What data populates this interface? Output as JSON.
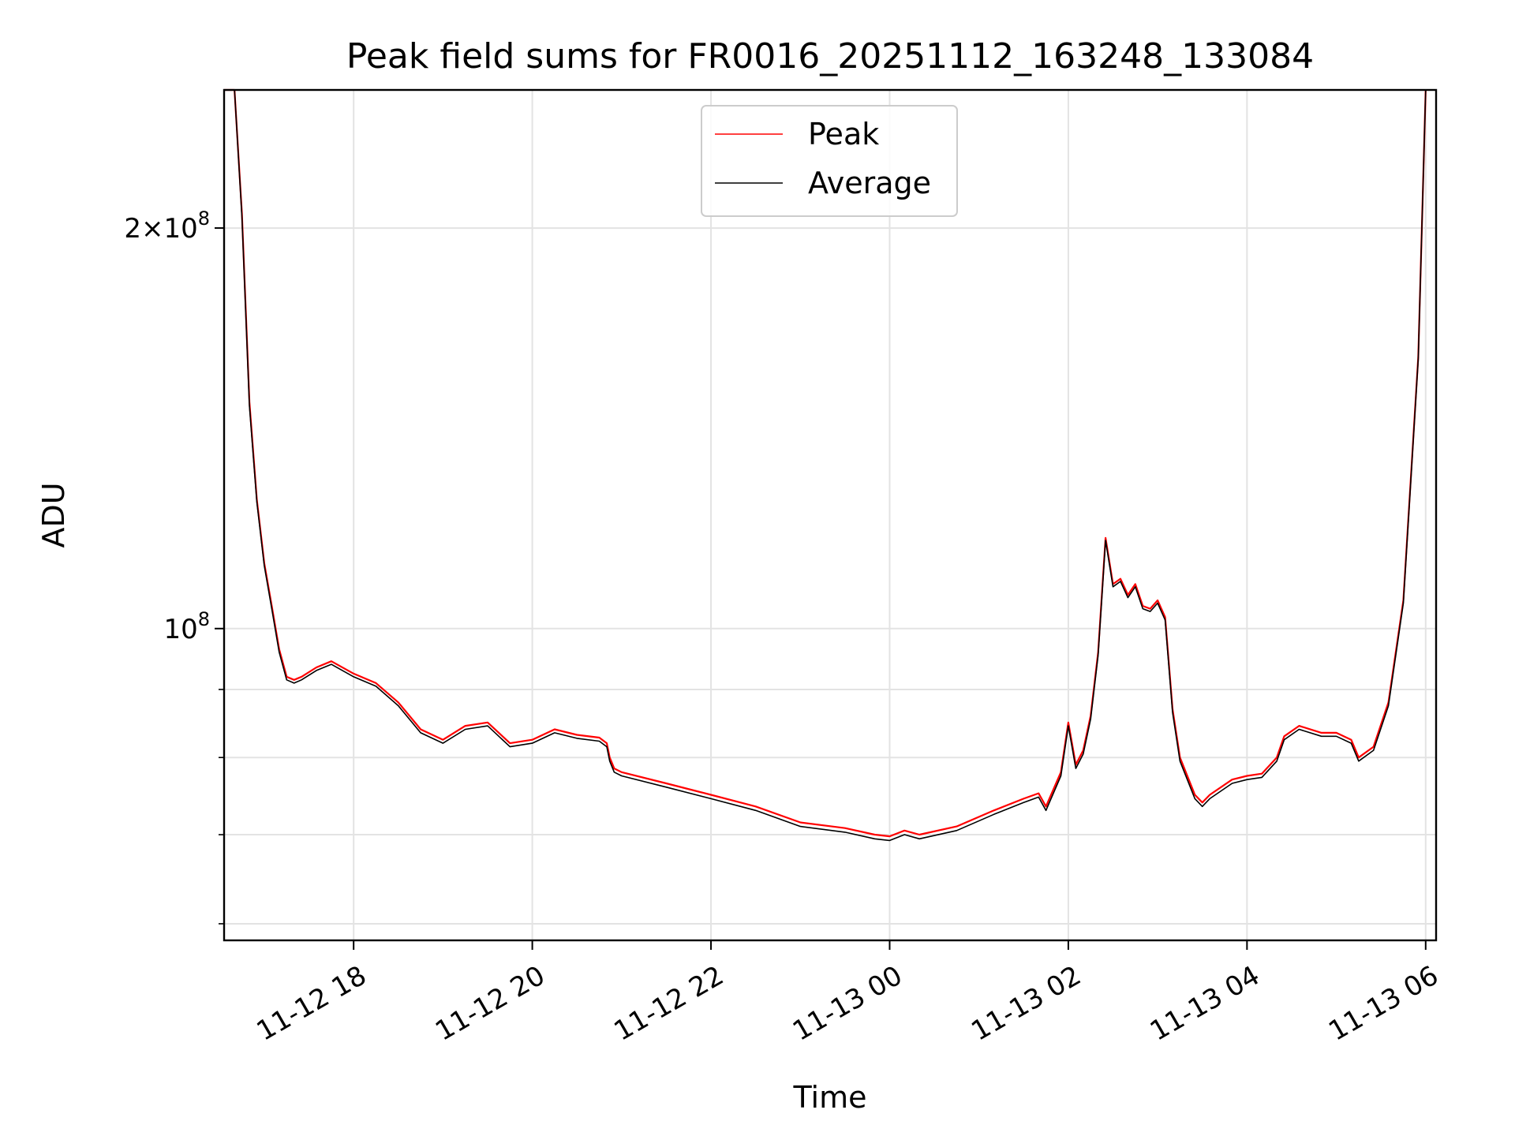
{
  "chart_data": {
    "type": "line",
    "title": "Peak field sums for FR0016_20251112_163248_133084",
    "xlabel": "Time",
    "ylabel": "ADU",
    "x_type": "datetime",
    "y_scale": "log",
    "xlim": [
      "2025-11-12T16:33",
      "2025-11-13T06:07"
    ],
    "ylim": [
      58300000,
      254000000
    ],
    "grid": true,
    "legend_position": "upper-center",
    "x_ticks": [
      {
        "value": "2025-11-12T18:00",
        "label": "11-12 18"
      },
      {
        "value": "2025-11-12T20:00",
        "label": "11-12 20"
      },
      {
        "value": "2025-11-12T22:00",
        "label": "11-12 22"
      },
      {
        "value": "2025-11-13T00:00",
        "label": "11-13 00"
      },
      {
        "value": "2025-11-13T02:00",
        "label": "11-13 02"
      },
      {
        "value": "2025-11-13T04:00",
        "label": "11-13 04"
      },
      {
        "value": "2025-11-13T06:00",
        "label": "11-13 06"
      }
    ],
    "y_major_ticks": [
      {
        "value": 100000000,
        "base": "10",
        "exp": "8",
        "coef": ""
      },
      {
        "value": 200000000,
        "base": "10",
        "exp": "8",
        "coef": "2×"
      }
    ],
    "y_minor_ticks": [
      60000000,
      70000000,
      80000000,
      90000000
    ],
    "series": [
      {
        "name": "Peak",
        "color": "#ff0000",
        "x": [
          "2025-11-12T16:33",
          "2025-11-12T16:40",
          "2025-11-12T16:45",
          "2025-11-12T16:50",
          "2025-11-12T16:55",
          "2025-11-12T17:00",
          "2025-11-12T17:05",
          "2025-11-12T17:10",
          "2025-11-12T17:15",
          "2025-11-12T17:20",
          "2025-11-12T17:25",
          "2025-11-12T17:35",
          "2025-11-12T17:45",
          "2025-11-12T18:00",
          "2025-11-12T18:15",
          "2025-11-12T18:30",
          "2025-11-12T18:45",
          "2025-11-12T19:00",
          "2025-11-12T19:15",
          "2025-11-12T19:30",
          "2025-11-12T19:45",
          "2025-11-12T20:00",
          "2025-11-12T20:15",
          "2025-11-12T20:30",
          "2025-11-12T20:45",
          "2025-11-12T20:50",
          "2025-11-12T20:52",
          "2025-11-12T20:55",
          "2025-11-12T21:00",
          "2025-11-12T21:30",
          "2025-11-12T22:00",
          "2025-11-12T22:30",
          "2025-11-12T23:00",
          "2025-11-12T23:30",
          "2025-11-12T23:50",
          "2025-11-13T00:00",
          "2025-11-13T00:10",
          "2025-11-13T00:20",
          "2025-11-13T00:45",
          "2025-11-13T01:10",
          "2025-11-13T01:30",
          "2025-11-13T01:40",
          "2025-11-13T01:45",
          "2025-11-13T01:55",
          "2025-11-13T02:00",
          "2025-11-13T02:05",
          "2025-11-13T02:10",
          "2025-11-13T02:15",
          "2025-11-13T02:20",
          "2025-11-13T02:25",
          "2025-11-13T02:30",
          "2025-11-13T02:35",
          "2025-11-13T02:40",
          "2025-11-13T02:45",
          "2025-11-13T02:50",
          "2025-11-13T02:55",
          "2025-11-13T03:00",
          "2025-11-13T03:05",
          "2025-11-13T03:10",
          "2025-11-13T03:15",
          "2025-11-13T03:25",
          "2025-11-13T03:30",
          "2025-11-13T03:35",
          "2025-11-13T03:50",
          "2025-11-13T04:00",
          "2025-11-13T04:10",
          "2025-11-13T04:20",
          "2025-11-13T04:25",
          "2025-11-13T04:35",
          "2025-11-13T04:50",
          "2025-11-13T05:00",
          "2025-11-13T05:10",
          "2025-11-13T05:15",
          "2025-11-13T05:25",
          "2025-11-13T05:35",
          "2025-11-13T05:45",
          "2025-11-13T05:55",
          "2025-11-13T06:00"
        ],
        "y": [
          254000000,
          254000000,
          205000000,
          148000000,
          125000000,
          112000000,
          104000000,
          96500000,
          92000000,
          91500000,
          92000000,
          93500000,
          94500000,
          92500000,
          91000000,
          88000000,
          84000000,
          82500000,
          84500000,
          85000000,
          82000000,
          82500000,
          84000000,
          83200000,
          82800000,
          82000000,
          80000000,
          78500000,
          78000000,
          76500000,
          75000000,
          73500000,
          71500000,
          70800000,
          70000000,
          69800000,
          70500000,
          70000000,
          71000000,
          73000000,
          74500000,
          75200000,
          73500000,
          78000000,
          85000000,
          79000000,
          81000000,
          86000000,
          96000000,
          117000000,
          108000000,
          109000000,
          106000000,
          108000000,
          104000000,
          103500000,
          105000000,
          102000000,
          87000000,
          80000000,
          75000000,
          74000000,
          75000000,
          77000000,
          77500000,
          77800000,
          80000000,
          83000000,
          84500000,
          83500000,
          83500000,
          82500000,
          80000000,
          81500000,
          88000000,
          105000000,
          160000000,
          254000000
        ]
      },
      {
        "name": "Average",
        "color": "#000000",
        "x": [
          "2025-11-12T16:33",
          "2025-11-12T16:40",
          "2025-11-12T16:45",
          "2025-11-12T16:50",
          "2025-11-12T16:55",
          "2025-11-12T17:00",
          "2025-11-12T17:05",
          "2025-11-12T17:10",
          "2025-11-12T17:15",
          "2025-11-12T17:20",
          "2025-11-12T17:25",
          "2025-11-12T17:35",
          "2025-11-12T17:45",
          "2025-11-12T18:00",
          "2025-11-12T18:15",
          "2025-11-12T18:30",
          "2025-11-12T18:45",
          "2025-11-12T19:00",
          "2025-11-12T19:15",
          "2025-11-12T19:30",
          "2025-11-12T19:45",
          "2025-11-12T20:00",
          "2025-11-12T20:15",
          "2025-11-12T20:30",
          "2025-11-12T20:45",
          "2025-11-12T20:50",
          "2025-11-12T20:52",
          "2025-11-12T20:55",
          "2025-11-12T21:00",
          "2025-11-12T21:30",
          "2025-11-12T22:00",
          "2025-11-12T22:30",
          "2025-11-12T23:00",
          "2025-11-12T23:30",
          "2025-11-12T23:50",
          "2025-11-13T00:00",
          "2025-11-13T00:10",
          "2025-11-13T00:20",
          "2025-11-13T00:45",
          "2025-11-13T01:10",
          "2025-11-13T01:30",
          "2025-11-13T01:40",
          "2025-11-13T01:45",
          "2025-11-13T01:55",
          "2025-11-13T02:00",
          "2025-11-13T02:05",
          "2025-11-13T02:10",
          "2025-11-13T02:15",
          "2025-11-13T02:20",
          "2025-11-13T02:25",
          "2025-11-13T02:30",
          "2025-11-13T02:35",
          "2025-11-13T02:40",
          "2025-11-13T02:45",
          "2025-11-13T02:50",
          "2025-11-13T02:55",
          "2025-11-13T03:00",
          "2025-11-13T03:05",
          "2025-11-13T03:10",
          "2025-11-13T03:15",
          "2025-11-13T03:25",
          "2025-11-13T03:30",
          "2025-11-13T03:35",
          "2025-11-13T03:50",
          "2025-11-13T04:00",
          "2025-11-13T04:10",
          "2025-11-13T04:20",
          "2025-11-13T04:25",
          "2025-11-13T04:35",
          "2025-11-13T04:50",
          "2025-11-13T05:00",
          "2025-11-13T05:10",
          "2025-11-13T05:15",
          "2025-11-13T05:25",
          "2025-11-13T05:35",
          "2025-11-13T05:45",
          "2025-11-13T05:55",
          "2025-11-13T06:00"
        ],
        "y": [
          254000000,
          254000000,
          204000000,
          147000000,
          124500000,
          111500000,
          103500000,
          96000000,
          91500000,
          91000000,
          91500000,
          93000000,
          94000000,
          92000000,
          90500000,
          87500000,
          83500000,
          82000000,
          84000000,
          84500000,
          81500000,
          82000000,
          83500000,
          82700000,
          82300000,
          81500000,
          79500000,
          78000000,
          77500000,
          76000000,
          74500000,
          73000000,
          71000000,
          70300000,
          69500000,
          69300000,
          70000000,
          69500000,
          70500000,
          72500000,
          74000000,
          74700000,
          73000000,
          77500000,
          84500000,
          78500000,
          80500000,
          85500000,
          95500000,
          116500000,
          107500000,
          108500000,
          105500000,
          107500000,
          103500000,
          103000000,
          104500000,
          101500000,
          86500000,
          79500000,
          74500000,
          73500000,
          74500000,
          76500000,
          77000000,
          77300000,
          79500000,
          82500000,
          84000000,
          83000000,
          83000000,
          82000000,
          79500000,
          81000000,
          87500000,
          104500000,
          159500000,
          254000000
        ]
      }
    ]
  }
}
